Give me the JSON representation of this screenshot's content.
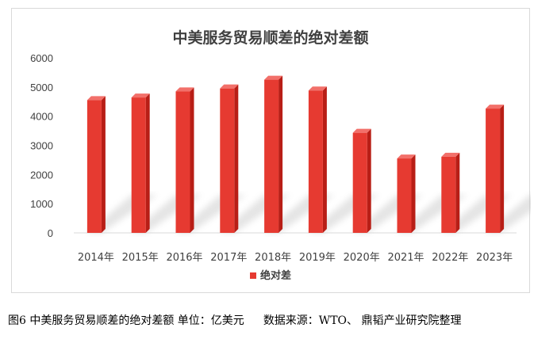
{
  "chart_data": {
    "type": "bar",
    "title": "中美服务贸易顺差的绝对差额",
    "categories": [
      "2014年",
      "2015年",
      "2016年",
      "2017年",
      "2018年",
      "2019年",
      "2020年",
      "2021年",
      "2022年",
      "2023年"
    ],
    "series": [
      {
        "name": "绝对差",
        "values": [
          4550,
          4640,
          4850,
          4950,
          5250,
          4880,
          3430,
          2550,
          2610,
          4260
        ]
      }
    ],
    "yticks": [
      0,
      1000,
      2000,
      3000,
      4000,
      5000,
      6000
    ],
    "ylim": [
      0,
      6000
    ],
    "legend_position": "bottom",
    "grid": false,
    "colors": {
      "bar_front": "#e63a31",
      "bar_side": "#b81e16",
      "bar_top": "#f2706a"
    }
  },
  "caption": {
    "text": "图6  中美服务贸易顺差的绝对差额  单位：亿美元",
    "source": "数据来源：WTO、  鼎韬产业研究院整理"
  }
}
